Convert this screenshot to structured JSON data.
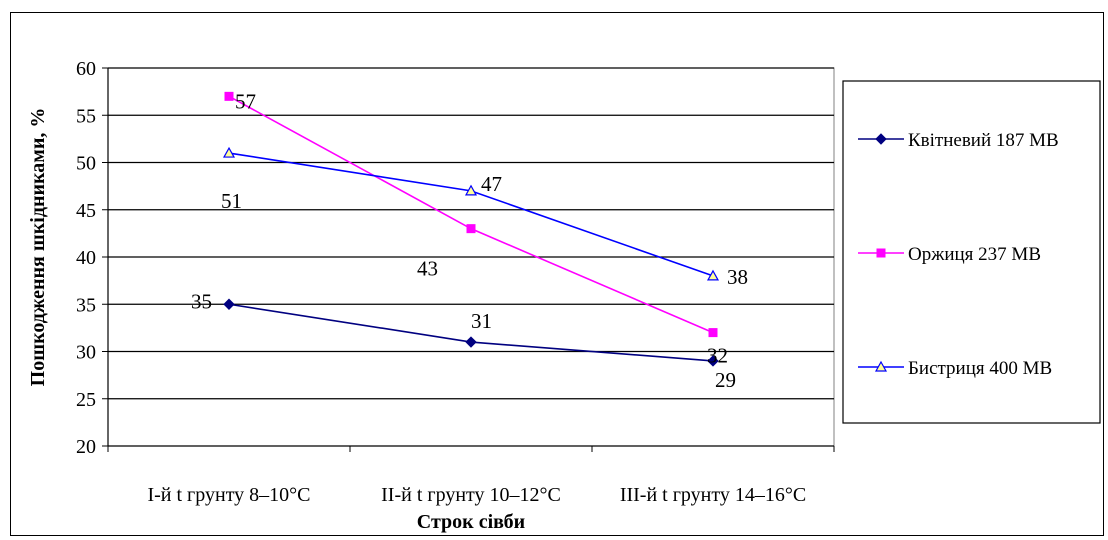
{
  "chart_data": {
    "type": "line",
    "xlabel": "Строк сівби",
    "ylabel": "Пошкодження шкідниками, %",
    "ylim": [
      20,
      60
    ],
    "ytick_step": 5,
    "grid": true,
    "legend_position": "right",
    "categories": [
      "І-й t грунту 8–10°С",
      "ІІ-й t грунту 10–12°С",
      "ІІІ-й t грунту 14–16°С"
    ],
    "series": [
      {
        "name": "Квітневий 187 МВ",
        "values": [
          35,
          31,
          29
        ],
        "color": "#000080",
        "marker": "diamond"
      },
      {
        "name": "Оржиця 237 МВ",
        "values": [
          57,
          43,
          32
        ],
        "color": "#ff00ff",
        "marker": "square"
      },
      {
        "name": "Бистриця 400 МВ",
        "values": [
          51,
          47,
          38
        ],
        "color": "#0000ff",
        "marker": "triangle"
      }
    ],
    "colors": {
      "grid": "#000000",
      "plot_background": "#ffffff",
      "triangle_fill": "#ffff99"
    }
  }
}
